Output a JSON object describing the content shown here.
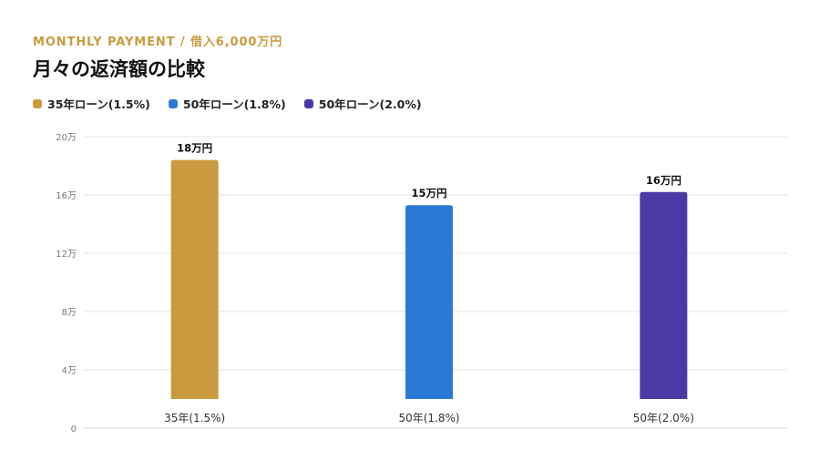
{
  "header": {
    "eyebrow": "MONTHLY PAYMENT / 借入6,000万円",
    "title": "月々の返済額の比較"
  },
  "chart_data": {
    "type": "bar",
    "title": "月々の返済額の比較",
    "categories": [
      "35年(1.5%)",
      "50年(1.8%)",
      "50年(2.0%)"
    ],
    "values": [
      18.4,
      15.3,
      16.2
    ],
    "data_labels": [
      "18万円",
      "15万円",
      "16万円"
    ],
    "colors": [
      "#C99B3E",
      "#2B79D6",
      "#4A3AA6"
    ],
    "legend": [
      {
        "label": "35年ローン(1.5%)",
        "color": "#C99B3E"
      },
      {
        "label": "50年ローン(1.8%)",
        "color": "#2B79D6"
      },
      {
        "label": "50年ローン(2.0%)",
        "color": "#4A3AA6"
      }
    ],
    "legend_position": "top-left",
    "yticks": [
      0,
      4,
      8,
      12,
      16,
      20
    ],
    "ytick_labels": [
      "0",
      "4万",
      "8万",
      "12万",
      "16万",
      "20万"
    ],
    "ylim": [
      0,
      20
    ],
    "ybase": 2,
    "grid": true,
    "xlabel": "",
    "ylabel": ""
  }
}
